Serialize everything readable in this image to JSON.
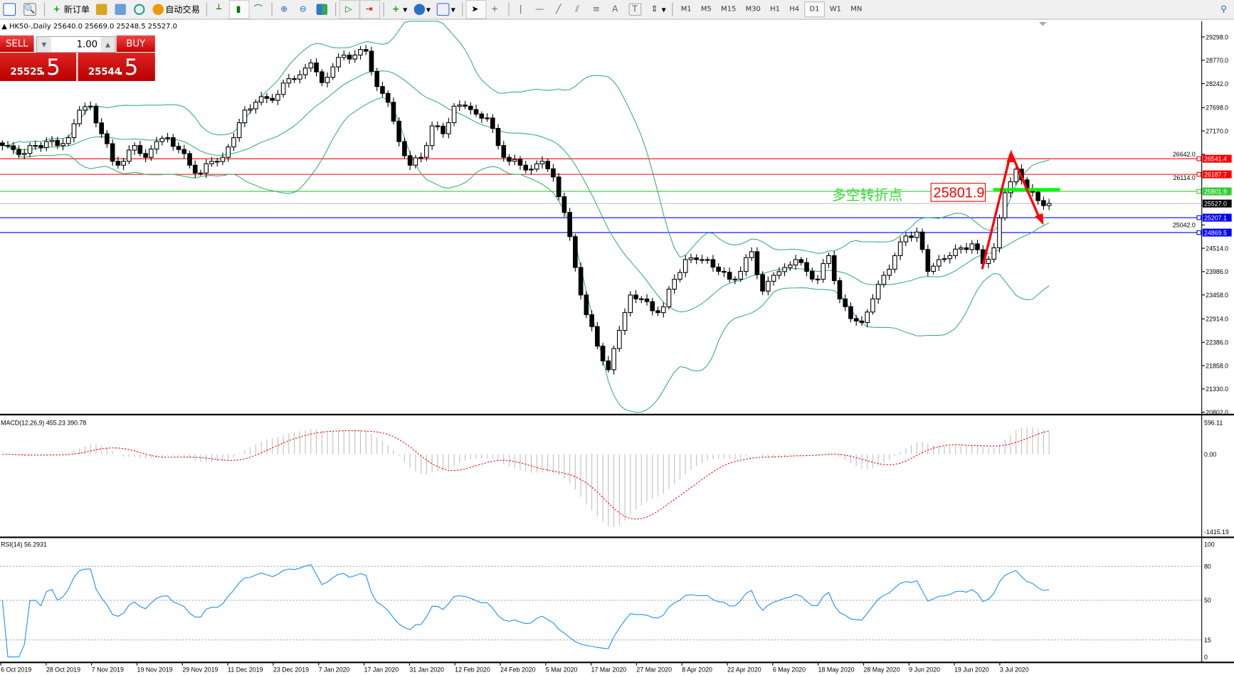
{
  "toolbar": {
    "new_order": "新订单",
    "auto_trade": "自动交易",
    "timeframes": [
      "M1",
      "M5",
      "M15",
      "M30",
      "H1",
      "H4",
      "D1",
      "W1",
      "MN"
    ],
    "active_timeframe": "D1"
  },
  "chart_header": "HK50-,Daily  25640.0 25669.0 25248.5 25527.0",
  "trade_panel": {
    "sell_label": "SELL",
    "buy_label": "BUY",
    "lot": "1.00",
    "sell_price_main": "25525",
    "sell_price_big": ".5",
    "buy_price_main": "25544",
    "buy_price_big": ".5"
  },
  "annotation": {
    "text": "多空转折点",
    "value_box": "25801.9",
    "text_color": "#33dd33",
    "arrow_color": "#ff0000"
  },
  "chart_data": [
    {
      "type": "candlestick",
      "symbol": "HK50-",
      "timeframe": "Daily",
      "ylim": [
        20802.0,
        29298.0
      ],
      "y_ticks": [
        "29298.0",
        "28770.0",
        "28242.0",
        "27698.0",
        "27170.0",
        "26642.0",
        "26114.0",
        "25042.0",
        "24514.0",
        "23986.0",
        "23458.0",
        "22914.0",
        "22386.0",
        "21858.0",
        "21330.0",
        "20802.0"
      ],
      "x_ticks": [
        "6 Oct 2019",
        "28 Oct 2019",
        "7 Nov 2019",
        "19 Nov 2019",
        "29 Nov 2019",
        "11 Dec 2019",
        "23 Dec 2019",
        "7 Jan 2020",
        "17 Jan 2020",
        "31 Jan 2020",
        "12 Feb 2020",
        "24 Feb 2020",
        "5 Mar 2020",
        "17 Mar 2020",
        "27 Mar 2020",
        "8 Apr 2020",
        "22 Apr 2020",
        "6 May 2020",
        "18 May 2020",
        "28 May 2020",
        "9 Jun 2020",
        "19 Jun 2020",
        "3 Jul 2020"
      ],
      "close_samples": [
        26840,
        26751,
        26662,
        26840,
        26929,
        26840,
        27018,
        27642,
        27731,
        27107,
        26484,
        26484,
        26840,
        26573,
        26929,
        27018,
        26751,
        26395,
        26217,
        26484,
        26573,
        27018,
        27642,
        27820,
        27909,
        27998,
        28354,
        28443,
        28710,
        28265,
        28621,
        28888,
        28888,
        28977,
        28176,
        27820,
        26929,
        26395,
        26573,
        27285,
        27107,
        27731,
        27731,
        27553,
        27464,
        26840,
        26484,
        26395,
        26306,
        26484,
        26128,
        25326,
        24080,
        23011,
        22299,
        21764,
        22655,
        23456,
        23367,
        23100,
        23189,
        23813,
        24258,
        24258,
        24258,
        23991,
        23813,
        23991,
        24436,
        23545,
        23902,
        24080,
        24258,
        23991,
        23813,
        24347,
        23367,
        22922,
        22833,
        23367,
        23902,
        24347,
        24792,
        24881,
        23991,
        24258,
        24347,
        24525,
        24614,
        24169,
        24525,
        25772,
        26306,
        25861,
        25594,
        25527
      ],
      "bollinger": {
        "period": 20,
        "deviations": 2,
        "color": "#3cb371"
      },
      "levels": [
        {
          "value": "26541.4",
          "color": "#ff0000"
        },
        {
          "value": "26187.7",
          "color": "#ff0000"
        },
        {
          "value": "25801.9",
          "color": "#33cc33"
        },
        {
          "value": "25527.0",
          "color": "#000000",
          "line_color": "#c0c0c0"
        },
        {
          "value": "25207.1",
          "color": "#0000ff"
        },
        {
          "value": "24869.5",
          "color": "#0000ff"
        }
      ]
    },
    {
      "type": "bar+line",
      "label": "MACD(12,26,9) 455.23 390.78",
      "ylim": [
        -1415.19,
        596.11
      ],
      "y_ticks": [
        "596.11",
        "0.00",
        "-1415.19"
      ],
      "histogram_color": "#c0c0c0",
      "signal_color": "#ff0000"
    },
    {
      "type": "line",
      "label": "RSI(14) 56.2931",
      "ylim": [
        0,
        100
      ],
      "y_ticks": [
        "100",
        "80",
        "50",
        "15",
        "0"
      ],
      "levels": [
        80,
        50,
        15
      ],
      "color": "#1e90ff"
    }
  ]
}
